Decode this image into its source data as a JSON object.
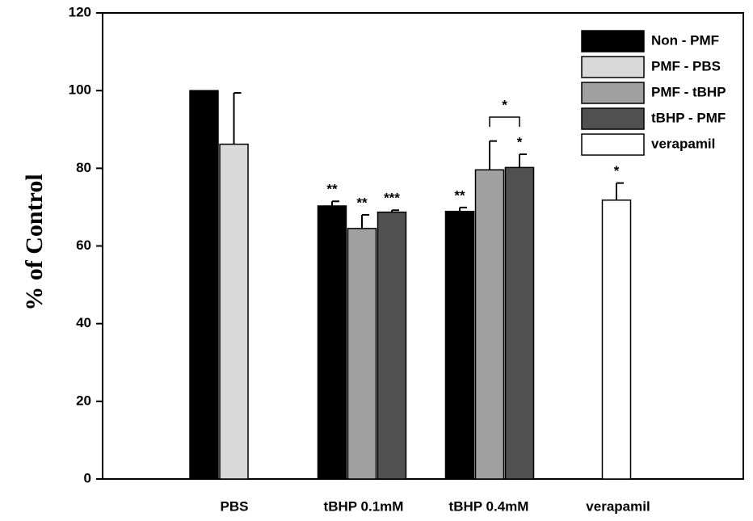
{
  "chart_data": {
    "type": "bar",
    "y_label": "% of Control",
    "categories": [
      "PBS",
      "tBHP 0.1mM",
      "tBHP 0.4mM",
      "verapamil"
    ],
    "series": [
      {
        "name": "Non - PMF",
        "color": "#000000",
        "values": [
          100,
          70.3,
          68.9,
          null
        ],
        "errors": [
          null,
          1.2,
          1.0,
          null
        ],
        "labels": [
          null,
          "**",
          "**",
          null
        ]
      },
      {
        "name": "PMF - PBS",
        "color": "#d9d9d9",
        "values": [
          86.2,
          null,
          null,
          null
        ],
        "errors": [
          13.2,
          null,
          null,
          null
        ],
        "labels": [
          null,
          null,
          null,
          null
        ]
      },
      {
        "name": "PMF - tBHP",
        "color": "#a0a0a0",
        "values": [
          null,
          64.5,
          79.6,
          null
        ],
        "errors": [
          null,
          3.5,
          7.4,
          null
        ],
        "labels": [
          null,
          "**",
          null,
          null
        ]
      },
      {
        "name": "tBHP - PMF",
        "color": "#505050",
        "values": [
          null,
          68.7,
          80.2,
          null
        ],
        "errors": [
          null,
          0.5,
          3.4,
          null
        ],
        "labels": [
          null,
          "***",
          "*",
          null
        ]
      },
      {
        "name": "verapamil",
        "color": "#ffffff",
        "values": [
          null,
          null,
          null,
          71.8
        ],
        "errors": [
          null,
          null,
          null,
          4.4
        ],
        "labels": [
          null,
          null,
          null,
          "*"
        ]
      }
    ],
    "bracket_label": "*",
    "ylim": [
      0,
      120
    ],
    "yticks": [
      0,
      20,
      40,
      60,
      80,
      100,
      120
    ]
  }
}
